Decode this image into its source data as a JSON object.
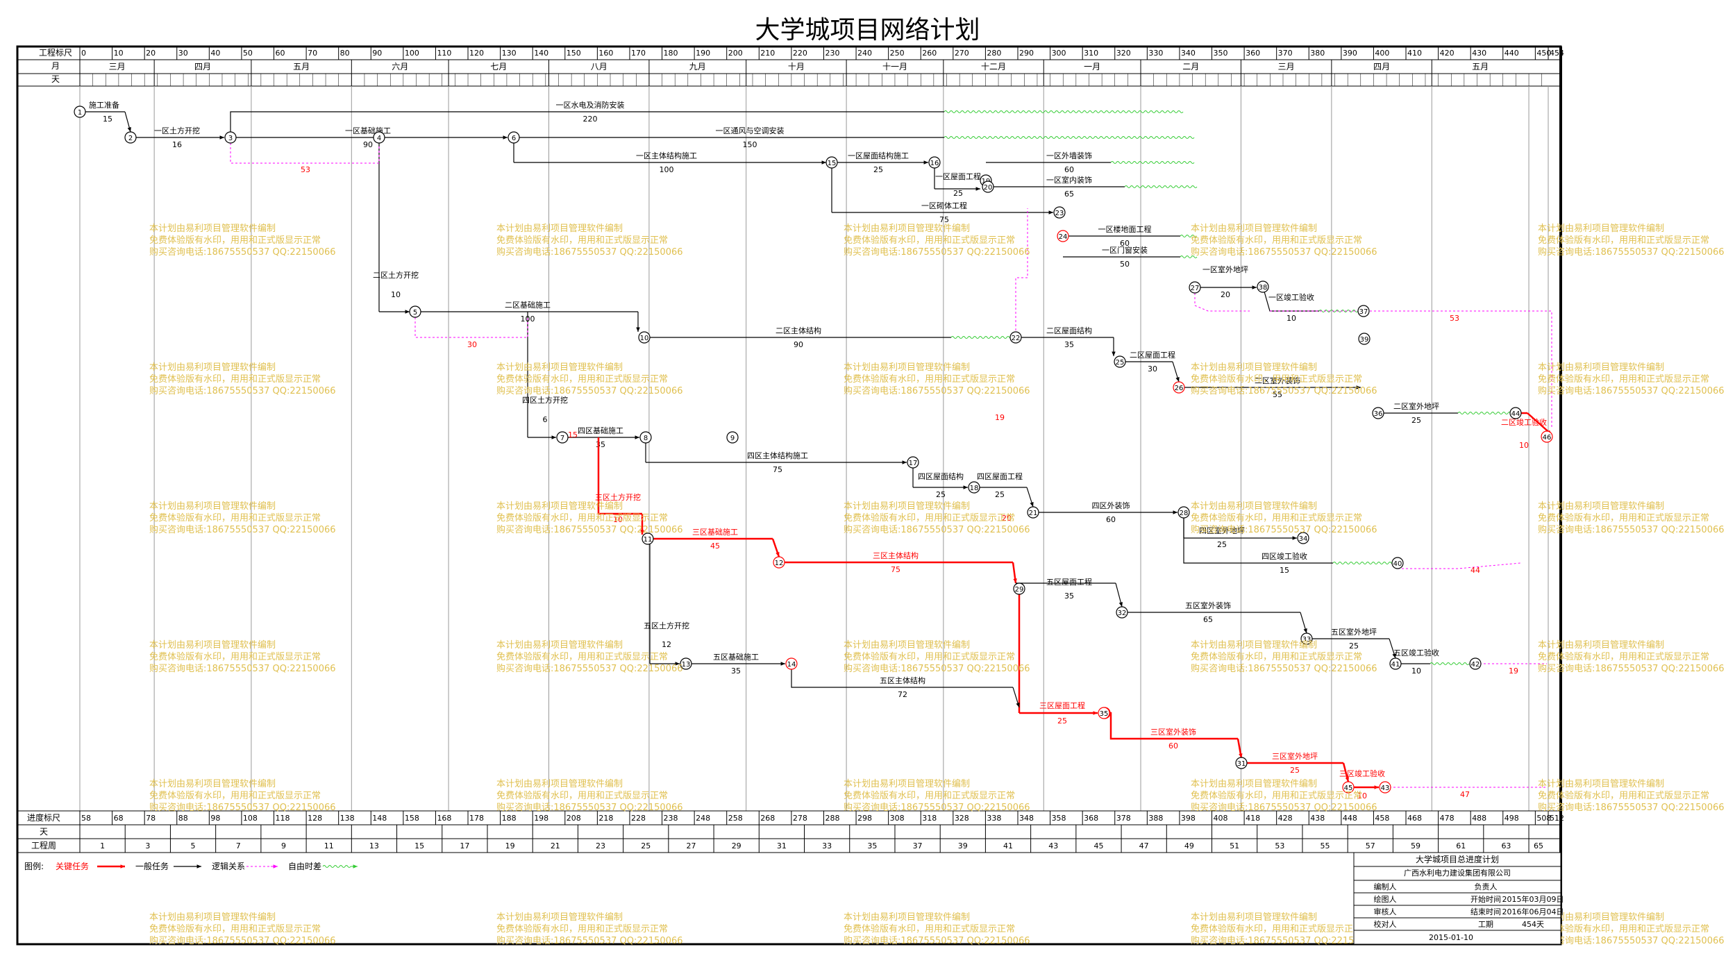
{
  "title": "大学城项目网络计划",
  "scale": {
    "top_label_ticks": "工程标尺",
    "top_label_month": "月",
    "top_label_day": "天",
    "top_ticks": [
      "0",
      "10",
      "20",
      "30",
      "40",
      "50",
      "60",
      "70",
      "80",
      "90",
      "100",
      "110",
      "120",
      "130",
      "140",
      "150",
      "160",
      "170",
      "180",
      "190",
      "200",
      "210",
      "220",
      "230",
      "240",
      "250",
      "260",
      "270",
      "280",
      "290",
      "300",
      "310",
      "320",
      "330",
      "340",
      "350",
      "360",
      "370",
      "380",
      "390",
      "400",
      "410",
      "420",
      "430",
      "440",
      "450",
      "454"
    ],
    "months": [
      "三月",
      "四月",
      "五月",
      "六月",
      "七月",
      "八月",
      "九月",
      "十月",
      "十一月",
      "十二月",
      "一月",
      "二月",
      "三月",
      "四月",
      "五月"
    ],
    "bottom_label_progress": "进度标尺",
    "bottom_label_day": "天",
    "bottom_label_week": "工程周",
    "bottom_ticks": [
      "58",
      "68",
      "78",
      "88",
      "98",
      "108",
      "118",
      "128",
      "138",
      "148",
      "158",
      "168",
      "178",
      "188",
      "198",
      "208",
      "218",
      "228",
      "238",
      "248",
      "258",
      "268",
      "278",
      "288",
      "298",
      "308",
      "318",
      "328",
      "338",
      "348",
      "358",
      "368",
      "378",
      "388",
      "398",
      "408",
      "418",
      "428",
      "438",
      "448",
      "458",
      "468",
      "478",
      "488",
      "498",
      "508",
      "512"
    ],
    "weeks": [
      "1",
      "3",
      "5",
      "7",
      "9",
      "11",
      "13",
      "15",
      "17",
      "19",
      "21",
      "23",
      "25",
      "27",
      "29",
      "31",
      "33",
      "35",
      "37",
      "39",
      "41",
      "43",
      "45",
      "47",
      "49",
      "51",
      "53",
      "55",
      "57",
      "59",
      "61",
      "63",
      "65"
    ]
  },
  "tasks": [
    {
      "name": "施工准备",
      "dur": "15",
      "type": "normal"
    },
    {
      "name": "一区土方开挖",
      "dur": "16",
      "type": "normal"
    },
    {
      "name": "一区水电及消防安装",
      "dur": "220",
      "type": "normal"
    },
    {
      "name": "一区基础施工",
      "dur": "90",
      "type": "normal"
    },
    {
      "name": "一区通风与空调安装",
      "dur": "150",
      "type": "normal"
    },
    {
      "name": "一区主体结构施工",
      "dur": "100",
      "type": "normal"
    },
    {
      "name": "一区屋面结构施工",
      "dur": "25",
      "type": "normal"
    },
    {
      "name": "一区屋面工程",
      "dur": "25",
      "type": "normal"
    },
    {
      "name": "一区外墙装饰",
      "dur": "60",
      "type": "normal"
    },
    {
      "name": "一区室内装饰",
      "dur": "65",
      "type": "normal"
    },
    {
      "name": "一区砌体工程",
      "dur": "75",
      "type": "normal"
    },
    {
      "name": "一区楼地面工程",
      "dur": "60",
      "type": "normal"
    },
    {
      "name": "一区门窗安装",
      "dur": "50",
      "type": "normal"
    },
    {
      "name": "一区室外地坪",
      "dur": "20",
      "type": "normal"
    },
    {
      "name": "一区竣工验收",
      "dur": "10",
      "type": "normal"
    },
    {
      "name": "二区土方开挖",
      "dur": "10",
      "type": "normal"
    },
    {
      "name": "二区基础施工",
      "dur": "100",
      "type": "normal"
    },
    {
      "name": "二区主体结构",
      "dur": "90",
      "type": "normal"
    },
    {
      "name": "二区屋面结构",
      "dur": "35",
      "type": "normal"
    },
    {
      "name": "二区屋面工程",
      "dur": "30",
      "type": "normal"
    },
    {
      "name": "二区室外装饰",
      "dur": "55",
      "type": "normal"
    },
    {
      "name": "二区室外地坪",
      "dur": "25",
      "type": "normal"
    },
    {
      "name": "二区竣工验收",
      "dur": "10",
      "type": "critical"
    },
    {
      "name": "四区土方开挖",
      "dur": "6",
      "type": "normal"
    },
    {
      "name": "四区基础施工",
      "dur": "35",
      "type": "normal"
    },
    {
      "name": "四区主体结构施工",
      "dur": "75",
      "type": "normal"
    },
    {
      "name": "四区屋面结构",
      "dur": "25",
      "type": "normal"
    },
    {
      "name": "四区屋面工程",
      "dur": "25",
      "type": "normal"
    },
    {
      "name": "四区外装饰",
      "dur": "60",
      "type": "normal"
    },
    {
      "name": "四区室外地坪",
      "dur": "25",
      "type": "normal"
    },
    {
      "name": "四区竣工验收",
      "dur": "15",
      "type": "normal"
    },
    {
      "name": "三区土方开挖",
      "dur": "10",
      "type": "critical"
    },
    {
      "name": "三区基础施工",
      "dur": "45",
      "type": "critical"
    },
    {
      "name": "三区主体结构",
      "dur": "75",
      "type": "critical"
    },
    {
      "name": "三区屋面工程",
      "dur": "25",
      "type": "critical"
    },
    {
      "name": "三区室外装饰",
      "dur": "60",
      "type": "critical"
    },
    {
      "name": "三区室外地坪",
      "dur": "25",
      "type": "critical"
    },
    {
      "name": "三区竣工验收",
      "dur": "10",
      "type": "critical"
    },
    {
      "name": "五区土方开挖",
      "dur": "12",
      "type": "normal"
    },
    {
      "name": "五区基础施工",
      "dur": "35",
      "type": "normal"
    },
    {
      "name": "五区主体结构",
      "dur": "72",
      "type": "normal"
    },
    {
      "name": "五区屋面工程",
      "dur": "35",
      "type": "normal"
    },
    {
      "name": "五区室外装饰",
      "dur": "65",
      "type": "normal"
    },
    {
      "name": "五区室外地坪",
      "dur": "25",
      "type": "normal"
    },
    {
      "name": "五区竣工验收",
      "dur": "10",
      "type": "normal"
    }
  ],
  "float_labels": [
    "53",
    "30",
    "15",
    "19",
    "20",
    "53",
    "44",
    "19",
    "47"
  ],
  "watermark": [
    "本计划由易利项目管理软件编制",
    "免费体验版有水印，用用和正式版显示正常",
    "购买咨询电话:18675550537 QQ:22150066"
  ],
  "legend": {
    "label": "图例:",
    "critical": "关键任务",
    "normal": "一般任务",
    "logic": "逻辑关系",
    "free_float": "自由时差"
  },
  "info": {
    "plan_title": "大学城项目总进度计划",
    "company": "广西水利电力建设集团有限公司",
    "rows": [
      {
        "k1": "编制人",
        "v1": "",
        "k2": "负责人",
        "v2": ""
      },
      {
        "k1": "绘图人",
        "v1": "",
        "k2": "开始时间",
        "v2": "2015年03月09日"
      },
      {
        "k1": "审核人",
        "v1": "",
        "k2": "结束时间",
        "v2": "2016年06月04日"
      },
      {
        "k1": "校对人",
        "v1": "",
        "k2": "工期",
        "v2": "454天"
      }
    ],
    "date": "2015-01-10"
  },
  "colors": {
    "critical": "#ff0000",
    "normal": "#000000",
    "free_float": "#33cc33",
    "logic": "#ff00ff",
    "watermark": "#e0c050"
  }
}
